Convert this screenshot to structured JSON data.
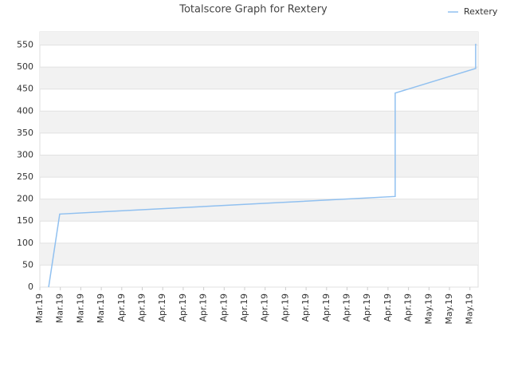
{
  "chart_data": {
    "type": "line",
    "title": "Totalscore Graph for Rextery",
    "x": [
      0.43,
      0.97,
      17.35,
      17.35,
      21.28,
      21.28
    ],
    "series": [
      {
        "name": "Rextery",
        "color": "#90c0f0",
        "values": [
          0,
          166,
          206,
          441,
          497,
          553
        ]
      }
    ],
    "xlim": [
      0,
      21.4
    ],
    "xticks": [
      {
        "value": 0,
        "label": "Mar.19"
      },
      {
        "value": 1,
        "label": "Mar.19"
      },
      {
        "value": 2,
        "label": "Mar.19"
      },
      {
        "value": 3,
        "label": "Mar.19"
      },
      {
        "value": 4,
        "label": "Apr.19"
      },
      {
        "value": 5,
        "label": "Apr.19"
      },
      {
        "value": 6,
        "label": "Apr.19"
      },
      {
        "value": 7,
        "label": "Apr.19"
      },
      {
        "value": 8,
        "label": "Apr.19"
      },
      {
        "value": 9,
        "label": "Apr.19"
      },
      {
        "value": 10,
        "label": "Apr.19"
      },
      {
        "value": 11,
        "label": "Apr.19"
      },
      {
        "value": 12,
        "label": "Apr.19"
      },
      {
        "value": 13,
        "label": "Apr.19"
      },
      {
        "value": 14,
        "label": "Apr.19"
      },
      {
        "value": 15,
        "label": "Apr.19"
      },
      {
        "value": 16,
        "label": "Apr.19"
      },
      {
        "value": 17,
        "label": "Apr.19"
      },
      {
        "value": 18,
        "label": "Apr.19"
      },
      {
        "value": 19,
        "label": "May.19"
      },
      {
        "value": 20,
        "label": "May.19"
      },
      {
        "value": 21,
        "label": "May.19"
      }
    ],
    "ylim": [
      0,
      580
    ],
    "yticks": [
      0,
      50,
      100,
      150,
      200,
      250,
      300,
      350,
      400,
      450,
      500,
      550
    ],
    "grid": true,
    "legend": "top-right"
  }
}
